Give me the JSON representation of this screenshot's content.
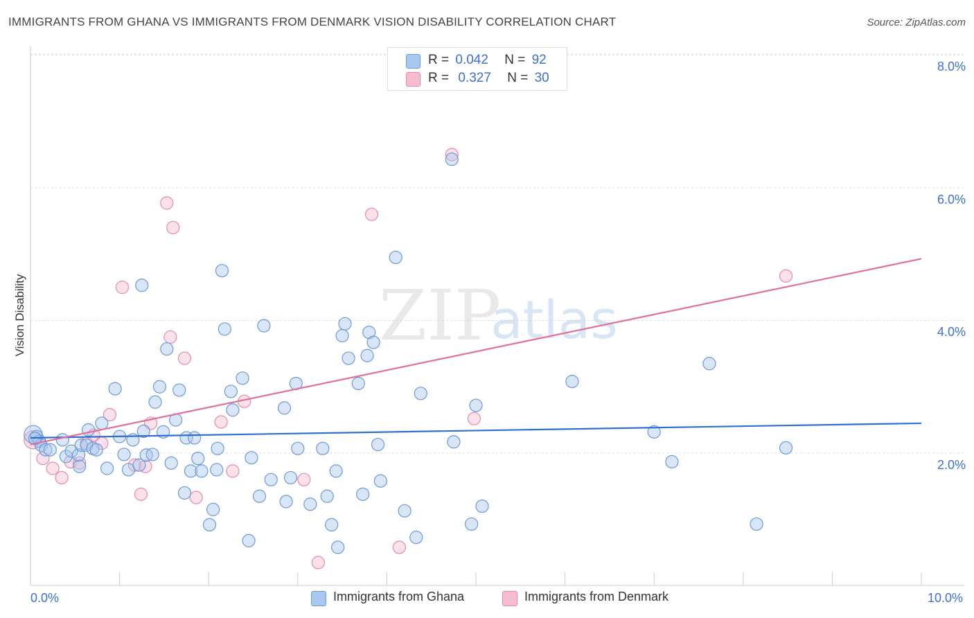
{
  "title": "IMMIGRANTS FROM GHANA VS IMMIGRANTS FROM DENMARK VISION DISABILITY CORRELATION CHART",
  "source": "Source: ZipAtlas.com",
  "watermark": {
    "zip": "ZIP",
    "atlas": "atlas"
  },
  "legend": {
    "r_label": "R =",
    "n_label": "N =",
    "rows": [
      {
        "r": "0.042",
        "n": "92",
        "color": "#a8c8f0"
      },
      {
        "r": "0.327",
        "n": "30",
        "color": "#f7bcd0"
      }
    ]
  },
  "colors": {
    "blue_fill": "#a8c8f0",
    "blue_stroke": "#6a9ad8",
    "blue_line": "#2f6fd1",
    "pink_fill": "#f7bcd0",
    "pink_stroke": "#e68aaa",
    "pink_line": "#e0709a"
  },
  "chart_data": {
    "type": "scatter",
    "title": "IMMIGRANTS FROM GHANA VS IMMIGRANTS FROM DENMARK VISION DISABILITY CORRELATION CHART",
    "xlabel": "",
    "ylabel": "Vision Disability",
    "xlim": [
      0,
      10
    ],
    "ylim": [
      0,
      8.2
    ],
    "x_tick_labels": [
      "0.0%",
      "10.0%"
    ],
    "y_tick_labels": [
      "2.0%",
      "4.0%",
      "6.0%",
      "8.0%"
    ],
    "y_ticks": [
      2,
      4,
      6,
      8
    ],
    "series": [
      {
        "name": "Immigrants from Ghana",
        "color": "#a8c8f0",
        "trend": {
          "x": [
            0,
            10
          ],
          "y": [
            2.23,
            2.45
          ]
        },
        "points": [
          [
            0.03,
            2.28
          ],
          [
            0.07,
            2.25
          ],
          [
            0.1,
            2.18
          ],
          [
            0.12,
            2.12
          ],
          [
            0.17,
            2.05
          ],
          [
            0.22,
            2.05
          ],
          [
            0.36,
            2.2
          ],
          [
            0.4,
            1.95
          ],
          [
            0.46,
            2.03
          ],
          [
            0.54,
            1.97
          ],
          [
            0.55,
            1.8
          ],
          [
            0.57,
            2.12
          ],
          [
            0.63,
            2.12
          ],
          [
            0.65,
            2.35
          ],
          [
            0.7,
            2.07
          ],
          [
            0.74,
            2.05
          ],
          [
            0.8,
            2.45
          ],
          [
            0.86,
            1.77
          ],
          [
            0.95,
            2.97
          ],
          [
            1.0,
            2.25
          ],
          [
            1.05,
            1.98
          ],
          [
            1.1,
            1.75
          ],
          [
            1.15,
            2.2
          ],
          [
            1.22,
            1.82
          ],
          [
            1.25,
            4.53
          ],
          [
            1.27,
            2.33
          ],
          [
            1.3,
            1.97
          ],
          [
            1.37,
            1.98
          ],
          [
            1.4,
            2.77
          ],
          [
            1.45,
            3.0
          ],
          [
            1.49,
            2.32
          ],
          [
            1.53,
            3.57
          ],
          [
            1.58,
            1.85
          ],
          [
            1.63,
            2.5
          ],
          [
            1.67,
            2.95
          ],
          [
            1.73,
            1.4
          ],
          [
            1.75,
            2.23
          ],
          [
            1.8,
            1.73
          ],
          [
            1.84,
            2.23
          ],
          [
            1.88,
            1.92
          ],
          [
            1.92,
            1.73
          ],
          [
            2.01,
            0.92
          ],
          [
            2.05,
            1.15
          ],
          [
            2.1,
            2.07
          ],
          [
            2.15,
            4.75
          ],
          [
            2.18,
            3.87
          ],
          [
            2.25,
            2.93
          ],
          [
            2.27,
            2.65
          ],
          [
            2.38,
            3.13
          ],
          [
            2.45,
            0.68
          ],
          [
            2.48,
            1.93
          ],
          [
            2.57,
            1.35
          ],
          [
            2.62,
            3.92
          ],
          [
            2.7,
            1.6
          ],
          [
            2.85,
            2.68
          ],
          [
            2.87,
            1.27
          ],
          [
            2.92,
            1.63
          ],
          [
            2.98,
            3.05
          ],
          [
            3.0,
            2.07
          ],
          [
            3.14,
            1.23
          ],
          [
            3.28,
            2.07
          ],
          [
            3.33,
            1.35
          ],
          [
            3.38,
            0.92
          ],
          [
            3.43,
            1.73
          ],
          [
            3.45,
            0.58
          ],
          [
            3.5,
            3.77
          ],
          [
            3.53,
            3.95
          ],
          [
            3.57,
            3.43
          ],
          [
            3.68,
            3.05
          ],
          [
            3.73,
            1.38
          ],
          [
            3.78,
            3.47
          ],
          [
            3.8,
            3.82
          ],
          [
            3.85,
            3.67
          ],
          [
            3.9,
            2.13
          ],
          [
            3.93,
            1.58
          ],
          [
            4.1,
            4.95
          ],
          [
            4.2,
            1.13
          ],
          [
            4.33,
            0.73
          ],
          [
            4.38,
            2.9
          ],
          [
            4.73,
            6.43
          ],
          [
            4.75,
            2.17
          ],
          [
            4.95,
            0.93
          ],
          [
            5.0,
            2.72
          ],
          [
            5.07,
            1.2
          ],
          [
            6.08,
            3.08
          ],
          [
            7.0,
            2.32
          ],
          [
            7.2,
            1.87
          ],
          [
            7.62,
            3.35
          ],
          [
            8.15,
            0.93
          ],
          [
            8.48,
            2.08
          ],
          [
            0.05,
            2.22
          ],
          [
            2.09,
            1.75
          ]
        ]
      },
      {
        "name": "Immigrants from Denmark",
        "color": "#f7bcd0",
        "trend": {
          "x": [
            0,
            10
          ],
          "y": [
            2.13,
            4.93
          ]
        },
        "points": [
          [
            0.03,
            2.2
          ],
          [
            0.14,
            1.92
          ],
          [
            0.25,
            1.77
          ],
          [
            0.35,
            1.63
          ],
          [
            0.45,
            1.87
          ],
          [
            0.55,
            1.85
          ],
          [
            0.63,
            2.15
          ],
          [
            0.71,
            2.27
          ],
          [
            0.8,
            2.15
          ],
          [
            0.89,
            2.58
          ],
          [
            1.03,
            4.5
          ],
          [
            1.17,
            1.82
          ],
          [
            1.24,
            1.38
          ],
          [
            1.29,
            1.8
          ],
          [
            1.35,
            2.45
          ],
          [
            1.53,
            5.77
          ],
          [
            1.57,
            3.75
          ],
          [
            1.6,
            5.4
          ],
          [
            1.73,
            3.43
          ],
          [
            1.86,
            1.33
          ],
          [
            2.14,
            2.47
          ],
          [
            2.27,
            1.73
          ],
          [
            2.4,
            2.78
          ],
          [
            3.07,
            1.6
          ],
          [
            3.23,
            0.35
          ],
          [
            3.83,
            5.6
          ],
          [
            4.14,
            0.58
          ],
          [
            4.73,
            6.5
          ],
          [
            4.98,
            2.52
          ],
          [
            8.48,
            4.67
          ]
        ]
      }
    ]
  },
  "bottom_legend": [
    "Immigrants from Ghana",
    "Immigrants from Denmark"
  ]
}
